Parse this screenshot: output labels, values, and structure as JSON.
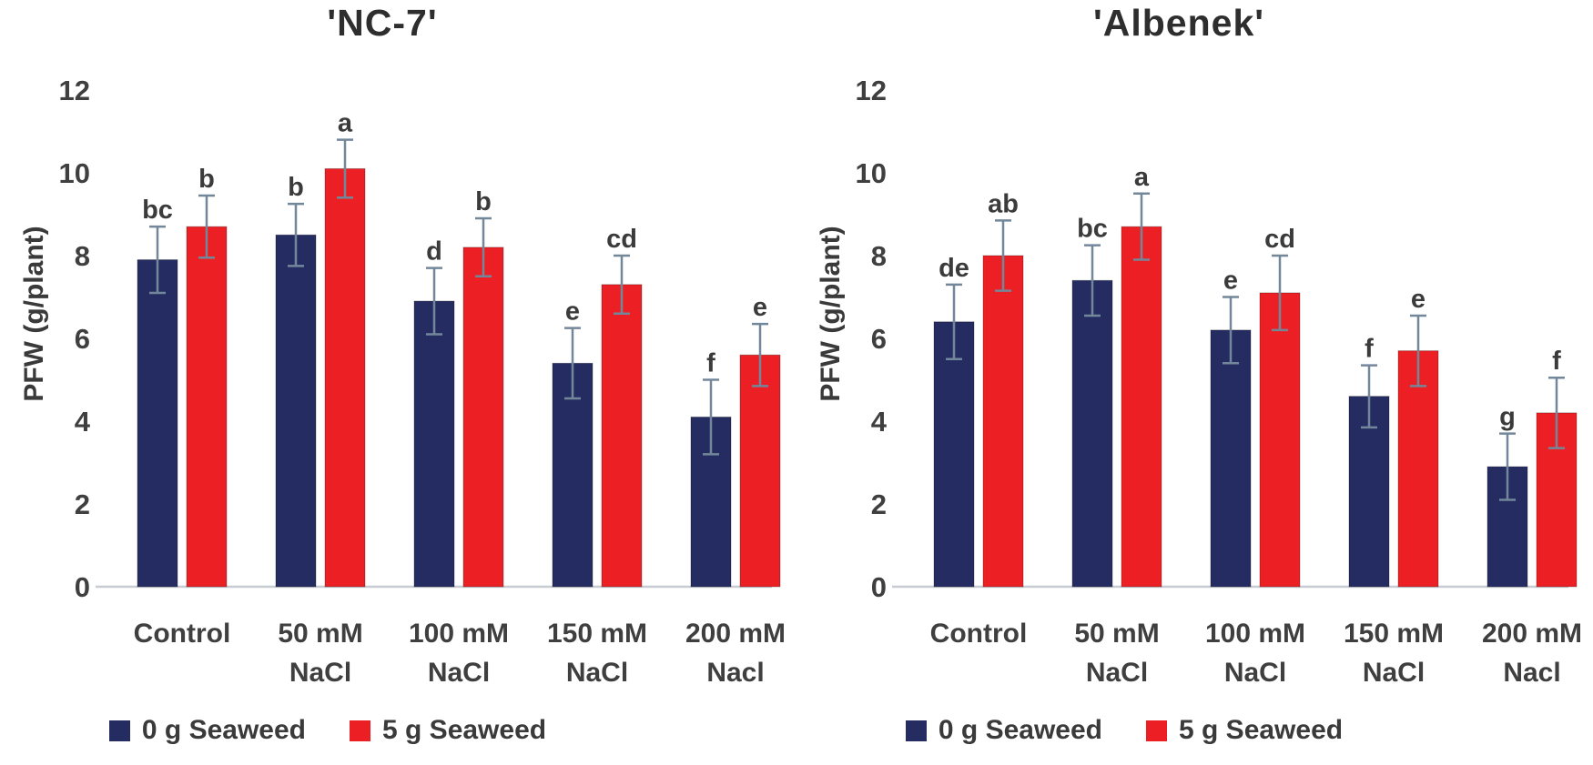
{
  "figure": {
    "background": "#ffffff",
    "description_texts": {
      "left_title": "'NC-7'",
      "right_title": "'Albenek'",
      "y_axis_title": "PFW (g/plant)"
    }
  },
  "style": {
    "series_navy": "#242c61",
    "series_red": "#ec2024",
    "axis_line": "#c8ccd2",
    "error_bar": "#73879b",
    "text": "#3f3f3f",
    "title_text": "#2e2e2e"
  },
  "chart_data": [
    {
      "type": "bar",
      "title": "'NC-7'",
      "xlabel": "",
      "ylabel": "PFW (g/plant)",
      "ylim": [
        0,
        12
      ],
      "yticks": [
        0,
        2,
        4,
        6,
        8,
        10,
        12
      ],
      "grid": false,
      "legend_position": "bottom",
      "categories": [
        {
          "line1": "Control",
          "line2": ""
        },
        {
          "line1": "50 mM",
          "line2": "NaCl"
        },
        {
          "line1": "100 mM",
          "line2": "NaCl"
        },
        {
          "line1": "150 mM",
          "line2": "NaCl"
        },
        {
          "line1": "200 mM",
          "line2": "Nacl"
        }
      ],
      "series": [
        {
          "name": "0 g Seaweed",
          "color": "#242c61",
          "values": [
            7.9,
            8.5,
            6.9,
            5.4,
            4.1
          ],
          "errors": [
            0.8,
            0.75,
            0.8,
            0.85,
            0.9
          ],
          "letters": [
            "bc",
            "b",
            "d",
            "e",
            "f"
          ]
        },
        {
          "name": "5 g Seaweed",
          "color": "#ec2024",
          "values": [
            8.7,
            10.1,
            8.2,
            7.3,
            5.6
          ],
          "errors": [
            0.75,
            0.7,
            0.7,
            0.7,
            0.75
          ],
          "letters": [
            "b",
            "a",
            "b",
            "cd",
            "e"
          ]
        }
      ]
    },
    {
      "type": "bar",
      "title": "'Albenek'",
      "xlabel": "",
      "ylabel": "PFW (g/plant)",
      "ylim": [
        0,
        12
      ],
      "yticks": [
        0,
        2,
        4,
        6,
        8,
        10,
        12
      ],
      "grid": false,
      "legend_position": "bottom",
      "categories": [
        {
          "line1": "Control",
          "line2": ""
        },
        {
          "line1": "50 mM",
          "line2": "NaCl"
        },
        {
          "line1": "100 mM",
          "line2": "NaCl"
        },
        {
          "line1": "150 mM",
          "line2": "NaCl"
        },
        {
          "line1": "200 mM",
          "line2": "Nacl"
        }
      ],
      "series": [
        {
          "name": "0 g Seaweed",
          "color": "#242c61",
          "values": [
            6.4,
            7.4,
            6.2,
            4.6,
            2.9
          ],
          "errors": [
            0.9,
            0.85,
            0.8,
            0.75,
            0.8
          ],
          "letters": [
            "de",
            "bc",
            "e",
            "f",
            "g"
          ]
        },
        {
          "name": "5 g Seaweed",
          "color": "#ec2024",
          "values": [
            8.0,
            8.7,
            7.1,
            5.7,
            4.2
          ],
          "errors": [
            0.85,
            0.8,
            0.9,
            0.85,
            0.85
          ],
          "letters": [
            "ab",
            "a",
            "cd",
            "e",
            "f"
          ]
        }
      ]
    }
  ]
}
